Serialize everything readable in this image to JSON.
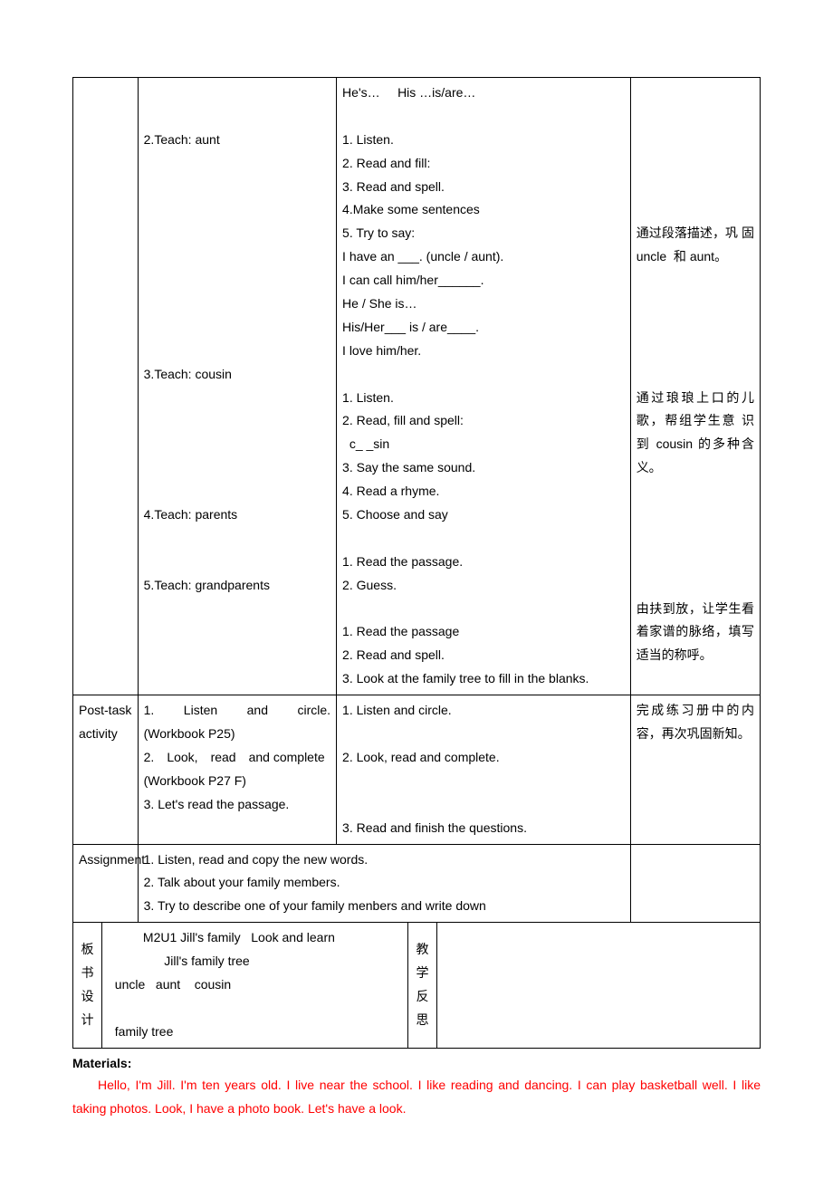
{
  "rows": [
    {
      "phase": "",
      "teacher": "\n\n2.Teach: aunt\n\n\n\n\n\n\n\n\n\n3.Teach: cousin\n\n\n\n\n\n4.Teach: parents\n\n\n5.Teach: grandparents",
      "student": "He's…     His …is/are…\n\n1. Listen.\n2. Read and fill:\n3. Read and spell.\n4.Make some sentences\n5. Try to say:\nI have an ___. (uncle / aunt).\nI can call him/her______.\nHe / She is…\nHis/Her___ is / are____.\nI love him/her.\n\n1. Listen.\n2. Read, fill and spell:\n  c_ _sin\n3. Say the same sound.\n4. Read a rhyme.\n5. Choose and say\n\n1. Read the passage.\n2. Guess.\n\n1. Read the passage\n2. Read and spell.\n3. Look at the family tree to fill in the blanks.",
      "note": "\n\n\n\n\n\n通过段落描述，巩 固 uncle  和 aunt。\n\n\n\n\n\n通过琅琅上口的儿歌，帮组学生意 识 到 cousin 的多种含义。\n\n\n\n\n\n由扶到放，让学生看着家谱的脉络，填写适当的称呼。"
    },
    {
      "phase": "Post-task activity",
      "teacher": "1.　Listen　and　circle. (Workbook P25)\n2.　Look,　read　and complete\n(Workbook P27 F)\n3. Let's read the passage.",
      "student": "1. Listen and circle.\n\n2. Look, read and complete.\n\n\n3. Read and finish the questions.",
      "note": "完成练习册中的内容，再次巩固新知。"
    },
    {
      "phase": "Assignment",
      "assignment": "1. Listen, read and copy the new words.\n2. Talk about your family members.\n3. Try to describe one of your family menbers and write down",
      "noteBlank": ""
    }
  ],
  "board": {
    "label": "板\n书\n设\n计",
    "content": "          M2U1 Jill's family   Look and learn\n                Jill's family tree\n  uncle   aunt    cousin\n\n  family tree",
    "reflectLabel": "教\n学\n反\n思",
    "reflectContent": ""
  },
  "materials": {
    "heading": "Materials:",
    "text": "Hello, I'm Jill. I'm ten years old. I live near the school. I like reading and dancing. I can play basketball well. I like taking photos. Look, I have a photo book. Let's have a look."
  }
}
